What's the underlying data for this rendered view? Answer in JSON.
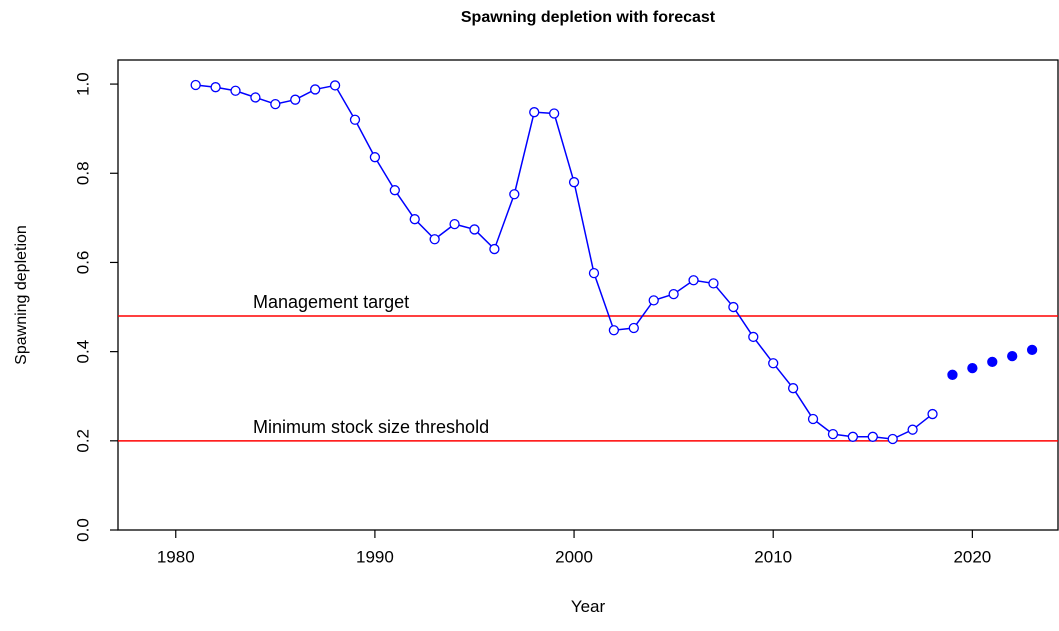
{
  "chart_data": {
    "type": "line",
    "title": "Spawning depletion with forecast",
    "x_label": "Year",
    "y_label": "Spawning depletion",
    "x": [
      1981,
      1982,
      1983,
      1984,
      1985,
      1986,
      1987,
      1988,
      1989,
      1990,
      1991,
      1992,
      1993,
      1994,
      1995,
      1996,
      1997,
      1998,
      1999,
      2000,
      2001,
      2002,
      2003,
      2004,
      2005,
      2006,
      2007,
      2008,
      2009,
      2010,
      2011,
      2012,
      2013,
      2014,
      2015,
      2016,
      2017,
      2018,
      2019,
      2020,
      2021,
      2022,
      2023
    ],
    "series": [
      {
        "color": "#0000ff",
        "marker": "open",
        "line": true,
        "values": [
          0.998,
          0.993,
          0.985,
          0.97,
          0.955,
          0.965,
          0.988,
          0.997,
          0.92,
          0.836,
          0.762,
          0.697,
          0.652,
          0.686,
          0.674,
          0.63,
          0.753,
          0.937,
          0.934,
          0.78,
          0.576,
          0.448,
          0.453,
          0.515,
          0.529,
          0.56,
          0.553,
          0.5,
          0.433,
          0.374,
          0.318,
          0.249,
          0.215,
          0.209,
          0.209,
          0.204,
          0.225,
          0.26,
          null,
          null,
          null,
          null,
          null
        ]
      },
      {
        "color": "#0000ff",
        "marker": "filled",
        "line": false,
        "values": [
          null,
          null,
          null,
          null,
          null,
          null,
          null,
          null,
          null,
          null,
          null,
          null,
          null,
          null,
          null,
          null,
          null,
          null,
          null,
          null,
          null,
          null,
          null,
          null,
          null,
          null,
          null,
          null,
          null,
          null,
          null,
          null,
          null,
          null,
          null,
          null,
          null,
          null,
          0.348,
          0.363,
          0.377,
          0.39,
          0.404
        ]
      }
    ],
    "hlines": [
      {
        "value": 0.48,
        "label": "Management target",
        "color": "#ff0000"
      },
      {
        "value": 0.2,
        "label": "Minimum stock size threshold",
        "color": "#ff0000"
      }
    ],
    "xlim": [
      1977.1,
      2024.3
    ],
    "xticks": [
      1980,
      1990,
      2000,
      2010,
      2020
    ],
    "ylim": [
      0,
      1.054
    ],
    "yticks": [
      {
        "value": 0,
        "label": "0.0"
      },
      {
        "value": 0.2,
        "label": "0.2"
      },
      {
        "value": 0.4,
        "label": "0.4"
      },
      {
        "value": 0.6,
        "label": "0.6"
      },
      {
        "value": 0.8,
        "label": "0.8"
      },
      {
        "value": 1,
        "label": "1.0"
      }
    ]
  }
}
